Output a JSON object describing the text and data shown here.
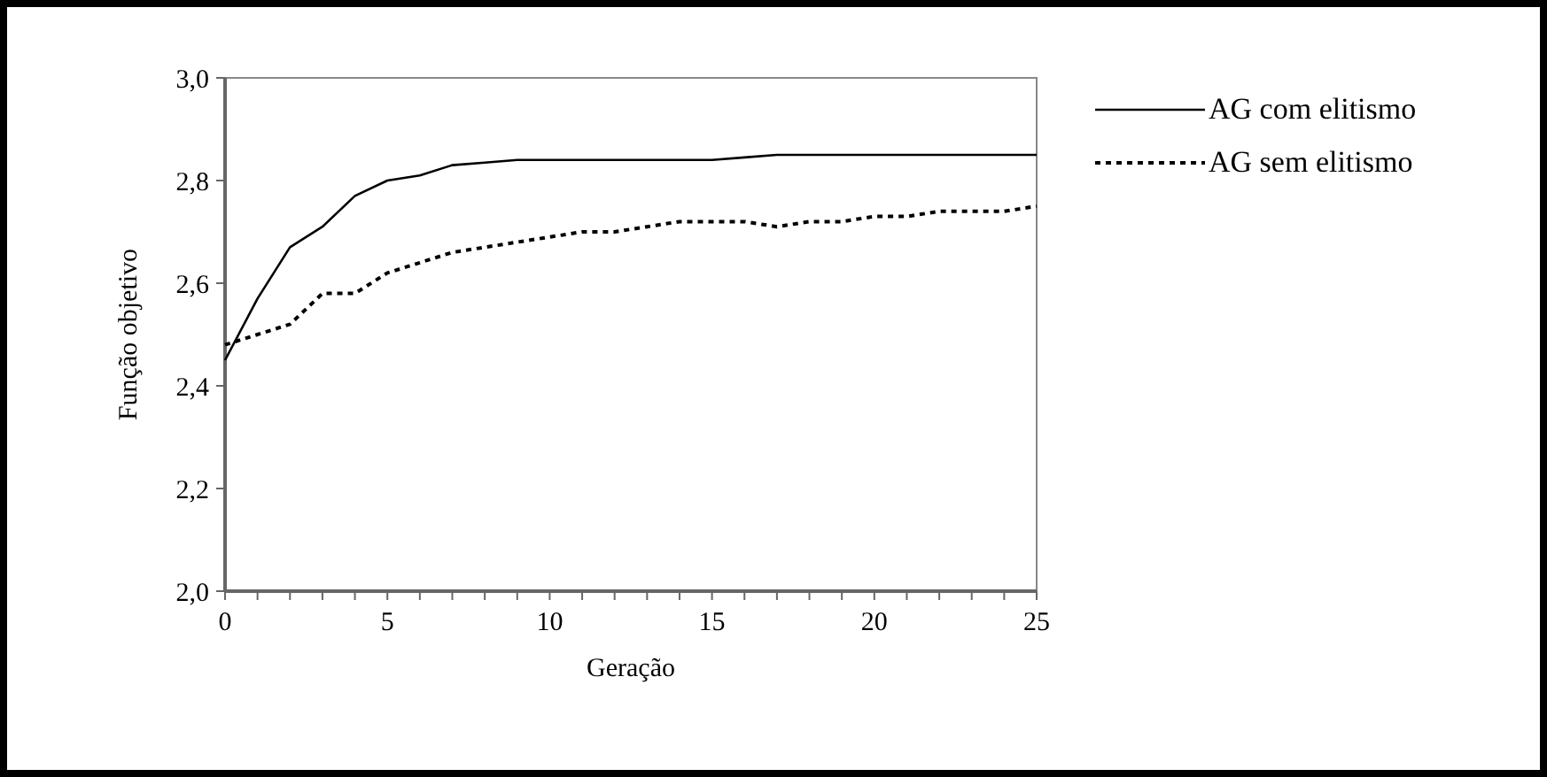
{
  "chart_data": {
    "type": "line",
    "xlabel": "Geração",
    "ylabel": "Função objetivo",
    "x": [
      0,
      1,
      2,
      3,
      4,
      5,
      6,
      7,
      8,
      9,
      10,
      11,
      12,
      13,
      14,
      15,
      16,
      17,
      18,
      19,
      20,
      21,
      22,
      23,
      24,
      25
    ],
    "series": [
      {
        "name": "AG com elitismo",
        "color": "#000000",
        "line_style": "solid",
        "values": [
          2.45,
          2.57,
          2.67,
          2.71,
          2.77,
          2.8,
          2.81,
          2.83,
          2.835,
          2.84,
          2.84,
          2.84,
          2.84,
          2.84,
          2.84,
          2.84,
          2.845,
          2.85,
          2.85,
          2.85,
          2.85,
          2.85,
          2.85,
          2.85,
          2.85,
          2.85
        ]
      },
      {
        "name": "AG sem elitismo",
        "color": "#000000",
        "line_style": "dotted",
        "values": [
          2.48,
          2.5,
          2.52,
          2.58,
          2.58,
          2.62,
          2.64,
          2.66,
          2.67,
          2.68,
          2.69,
          2.7,
          2.7,
          2.71,
          2.72,
          2.72,
          2.72,
          2.71,
          2.72,
          2.72,
          2.73,
          2.73,
          2.74,
          2.74,
          2.74,
          2.75
        ]
      }
    ],
    "xlim": [
      0,
      25
    ],
    "xticks": [
      0,
      {
        "value": 1,
        "label": null
      },
      {
        "value": 2,
        "label": null
      },
      {
        "value": 3,
        "label": null
      },
      {
        "value": 4,
        "label": null
      },
      5,
      {
        "value": 6,
        "label": null
      },
      {
        "value": 7,
        "label": null
      },
      {
        "value": 8,
        "label": null
      },
      {
        "value": 9,
        "label": null
      },
      10,
      {
        "value": 11,
        "label": null
      },
      {
        "value": 12,
        "label": null
      },
      {
        "value": 13,
        "label": null
      },
      {
        "value": 14,
        "label": null
      },
      15,
      {
        "value": 16,
        "label": null
      },
      {
        "value": 17,
        "label": null
      },
      {
        "value": 18,
        "label": null
      },
      {
        "value": 19,
        "label": null
      },
      20,
      {
        "value": 21,
        "label": null
      },
      {
        "value": 22,
        "label": null
      },
      {
        "value": 23,
        "label": null
      },
      {
        "value": 24,
        "label": null
      },
      25
    ],
    "ylim": [
      2.0,
      3.0
    ],
    "yticks": [
      {
        "value": 2.0,
        "label": "2,0"
      },
      {
        "value": 2.2,
        "label": "2,2"
      },
      {
        "value": 2.4,
        "label": "2,4"
      },
      {
        "value": 2.6,
        "label": "2,6"
      },
      {
        "value": 2.8,
        "label": "2,8"
      },
      {
        "value": 3.0,
        "label": "3,0"
      }
    ],
    "grid": false,
    "legend": "right",
    "marker": "none"
  }
}
